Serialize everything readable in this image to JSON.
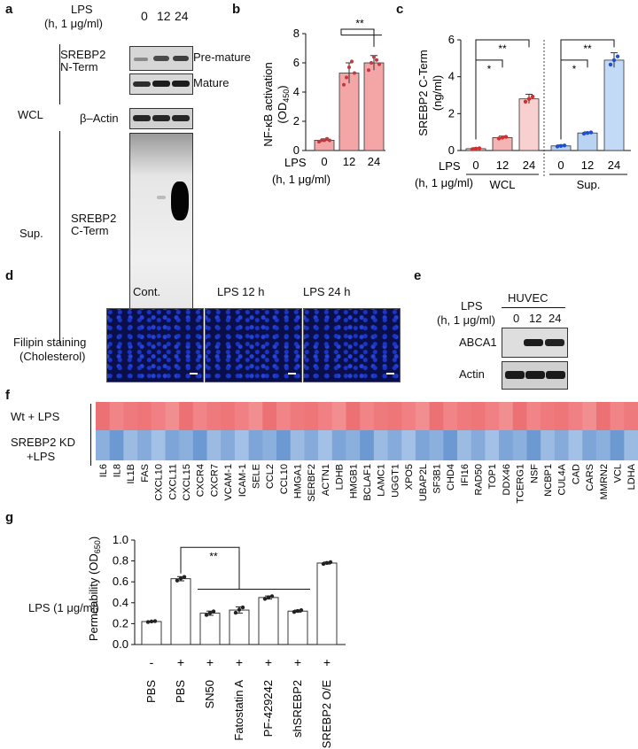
{
  "panels": {
    "a": "a",
    "b": "b",
    "c": "c",
    "d": "d",
    "e": "e",
    "f": "f",
    "g": "g"
  },
  "panel_a": {
    "lps_label": "LPS",
    "lps_unit": "(h, 1 μg/ml)",
    "times": [
      "0",
      "12",
      "24"
    ],
    "wcl": "WCL",
    "sup": "Sup.",
    "srebp2_n": "SREBP2\nN-Term",
    "premature": "Pre-mature",
    "mature": "Mature",
    "actin": "β–Actin",
    "srebp2_c": "SREBP2\nC-Term"
  },
  "panel_d": {
    "titles": [
      "Cont.",
      "LPS 12 h",
      "LPS 24 h"
    ],
    "row_label_1": "Filipin staining",
    "row_label_2": "(Cholesterol)",
    "colors": {
      "background": "#0a0f4a",
      "nuclei": "#2543d6"
    }
  },
  "panel_e": {
    "lps_label": "LPS",
    "lps_unit": "(h, 1 μg/ml)",
    "cell": "HUVEC",
    "times": [
      "0",
      "12",
      "24"
    ],
    "abca1": "ABCA1",
    "actin": "Actin"
  },
  "panel_f": {
    "row1": "Wt + LPS",
    "row2_1": "SREBP2 KD",
    "row2_2": "+LPS",
    "genes": [
      "IL6",
      "IL8",
      "IL1B",
      "FAS",
      "CXCL10",
      "CXCL11",
      "CXCL15",
      "CXCR4",
      "CXCR7",
      "VCAM-1",
      "ICAM-1",
      "SELE",
      "CCL2",
      "CCL10",
      "HMGA1",
      "SERBF2",
      "ACTN1",
      "LDHB",
      "HMGB1",
      "BCLAF1",
      "LAMC1",
      "UGGT1",
      "XPO5",
      "UBAP2L",
      "SF3B1",
      "CHD4",
      "IFI16",
      "RAD50",
      "TOP1",
      "DDX46",
      "TCERG1",
      "NSF",
      "NCBP1",
      "CUL4A",
      "CAD",
      "CARS",
      "MMRN2",
      "VCL",
      "LDHA"
    ],
    "colors": {
      "wt": "#ef7d80",
      "kd": "#7fa6d8"
    }
  },
  "chart_data": [
    {
      "panel": "b",
      "type": "bar",
      "categories": [
        "0",
        "12",
        "24"
      ],
      "values": [
        0.7,
        5.3,
        6.0
      ],
      "errors": [
        0.1,
        0.7,
        0.5
      ],
      "points": [
        [
          0.6,
          0.7,
          0.7,
          0.8,
          0.7
        ],
        [
          4.5,
          5.0,
          5.7,
          6.1,
          5.3
        ],
        [
          5.5,
          6.0,
          6.4,
          6.2,
          5.9
        ]
      ],
      "ylabel_1": "NF-κB activation",
      "ylabel_2": "(OD",
      "ylabel_sub": "450",
      "ylabel_3": ")",
      "xlabel_1": "LPS",
      "xlabel_2": "(h, 1 μg/ml)",
      "ylim": [
        0,
        8
      ],
      "yticks": [
        "0",
        "2",
        "4",
        "6",
        "8"
      ],
      "sig": "**",
      "colors": {
        "bar": "#f4a6a6",
        "point": "#c0393f"
      }
    },
    {
      "panel": "c",
      "type": "bar",
      "groups": [
        "WCL",
        "Sup."
      ],
      "categories": [
        "0",
        "12",
        "24",
        "0",
        "12",
        "24"
      ],
      "values": [
        0.1,
        0.7,
        2.8,
        0.25,
        0.95,
        4.9
      ],
      "errors": [
        0.05,
        0.08,
        0.25,
        0.05,
        0.06,
        0.4
      ],
      "ylabel_1": "SREBP2 C-Term",
      "ylabel_2": "(ng/ml)",
      "xlabel_1": "LPS",
      "xlabel_2": "(h, 1 μg/ml)",
      "ylim": [
        0,
        6
      ],
      "yticks": [
        "0",
        "2",
        "4",
        "6"
      ],
      "sig": [
        "*",
        "**",
        "*",
        "**"
      ],
      "colors": {
        "wcl": [
          "#f4c4c4",
          "#f4b4b4",
          "#f9d0d0"
        ],
        "wcl_point": "#d82c2c",
        "sup": [
          "#b9d3f2",
          "#b9d3f2",
          "#c3daf6"
        ],
        "sup_point": "#1f4ed6"
      }
    },
    {
      "panel": "g",
      "type": "bar",
      "categories": [
        "PBS",
        "PBS",
        "SN50",
        "Fatostatin A",
        "PF-429242",
        "shSREBP2",
        "SREBP2 O/E"
      ],
      "lps": [
        "-",
        "+",
        "+",
        "+",
        "+",
        "+",
        "+"
      ],
      "values": [
        0.22,
        0.63,
        0.3,
        0.33,
        0.45,
        0.32,
        0.78
      ],
      "errors": [
        0.005,
        0.02,
        0.02,
        0.03,
        0.015,
        0.01,
        0.01
      ],
      "ylabel_1": "Permeability (OD",
      "ylabel_sub": "650",
      "ylabel_2": ")",
      "xlabel": "LPS (1 μg/ml)",
      "ylim": [
        0,
        1.0
      ],
      "yticks": [
        "0.0",
        "0.2",
        "0.4",
        "0.6",
        "0.8",
        "1.0"
      ],
      "sig": "**",
      "colors": {
        "bar": "#ffffff",
        "point": "#222222"
      }
    }
  ]
}
